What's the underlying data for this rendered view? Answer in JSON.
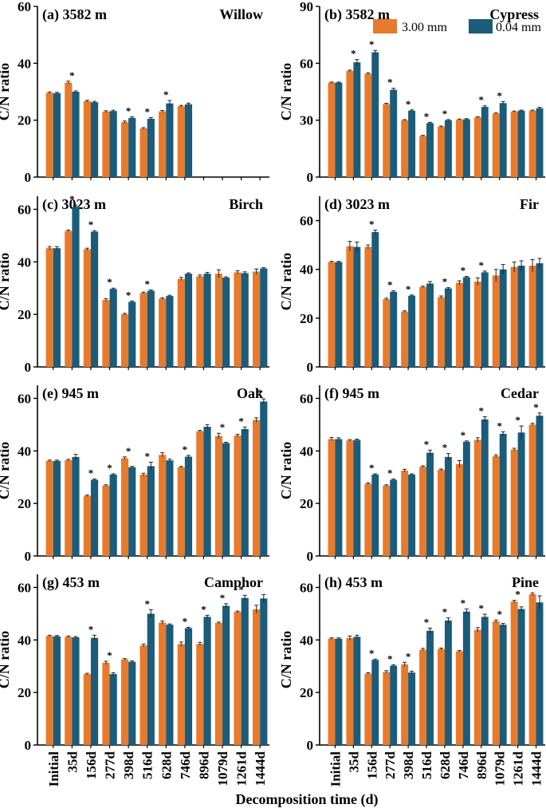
{
  "figure": {
    "xlabel": "Decomposition time (d)",
    "ylabel": "C/N ratio",
    "categories": [
      "Initial",
      "35d",
      "156d",
      "277d",
      "398d",
      "516d",
      "628d",
      "746d",
      "896d",
      "1079d",
      "1261d",
      "1444d"
    ],
    "colors": {
      "orange": "#E87A2C",
      "teal": "#1A5C7A"
    },
    "legend": [
      {
        "name": "3.00 mm",
        "color": "#E87A2C"
      },
      {
        "name": "0.04 mm",
        "color": "#1A5C7A"
      }
    ]
  },
  "chart_data": [
    {
      "type": "bar",
      "panel": "(a) 3582 m",
      "species": "Willow",
      "ylim": [
        0,
        60
      ],
      "yticks": [
        0,
        20,
        40,
        60
      ],
      "series": [
        {
          "name": "3.00 mm",
          "values": [
            29.6,
            33.2,
            26.7,
            23.0,
            19.3,
            17.1,
            23.1,
            24.9
          ]
        },
        {
          "name": "0.04 mm",
          "values": [
            29.5,
            30.0,
            26.3,
            23.2,
            20.8,
            20.5,
            25.9,
            25.6
          ]
        }
      ],
      "errors": [
        [
          0.3,
          0.5,
          0.3,
          0.3,
          0.4,
          0.3,
          0.3,
          0.3
        ],
        [
          0.3,
          0.3,
          0.3,
          0.3,
          0.4,
          0.4,
          1.0,
          0.4
        ]
      ],
      "sig": [
        1,
        4,
        5,
        6
      ]
    },
    {
      "type": "bar",
      "panel": "(b) 3582 m",
      "species": "Cypress",
      "ylim": [
        0,
        90
      ],
      "yticks": [
        0,
        30,
        60,
        90
      ],
      "series": [
        {
          "name": "3.00 mm",
          "values": [
            49.8,
            56.0,
            54.5,
            38.5,
            30.0,
            21.7,
            26.6,
            30.3,
            31.5,
            33.5,
            34.5,
            35.0
          ]
        },
        {
          "name": "0.04 mm",
          "values": [
            49.8,
            60.5,
            65.8,
            46.0,
            35.0,
            28.5,
            30.0,
            30.5,
            37.0,
            39.0,
            35.0,
            36.3
          ]
        }
      ],
      "errors": [
        [
          0.3,
          0.4,
          0.4,
          0.4,
          0.3,
          0.3,
          0.3,
          0.3,
          0.3,
          0.3,
          0.3,
          0.3
        ],
        [
          0.3,
          1.5,
          1.0,
          0.8,
          0.4,
          0.4,
          0.3,
          0.3,
          0.6,
          0.8,
          0.3,
          0.5
        ]
      ],
      "sig": [
        1,
        2,
        3,
        4,
        5,
        6,
        8,
        9
      ]
    },
    {
      "type": "bar",
      "panel": "(c) 3023 m",
      "species": "Birch",
      "ylim": [
        0,
        65
      ],
      "yticks": [
        0,
        20,
        40,
        60
      ],
      "series": [
        {
          "name": "3.00 mm",
          "values": [
            45.2,
            51.8,
            44.8,
            25.5,
            20.1,
            28.2,
            26.0,
            33.5,
            34.5,
            35.5,
            36.0,
            36.3
          ]
        },
        {
          "name": "0.04 mm",
          "values": [
            45.2,
            61.0,
            51.5,
            29.7,
            24.8,
            29.0,
            27.0,
            35.5,
            35.5,
            34.0,
            35.7,
            37.5
          ]
        }
      ],
      "errors": [
        [
          0.6,
          0.3,
          0.4,
          0.5,
          0.3,
          0.3,
          0.3,
          0.6,
          0.5,
          1.5,
          0.6,
          1.0
        ],
        [
          0.6,
          0.6,
          0.4,
          0.3,
          0.3,
          0.3,
          0.3,
          0.3,
          0.5,
          0.3,
          0.5,
          0.3
        ]
      ],
      "sig": [
        1,
        2,
        3,
        4,
        5
      ]
    },
    {
      "type": "bar",
      "panel": "(d) 3023 m",
      "species": "Fir",
      "ylim": [
        0,
        70
      ],
      "yticks": [
        0,
        20,
        40,
        60
      ],
      "series": [
        {
          "name": "3.00 mm",
          "values": [
            43.0,
            49.5,
            49.2,
            27.8,
            22.7,
            32.8,
            28.6,
            34.5,
            35.0,
            37.5,
            41.0,
            41.5
          ]
        },
        {
          "name": "0.04 mm",
          "values": [
            43.0,
            49.2,
            55.3,
            30.8,
            29.2,
            34.2,
            32.2,
            36.8,
            38.8,
            40.0,
            41.5,
            42.5
          ]
        }
      ],
      "errors": [
        [
          0.3,
          2.0,
          0.8,
          0.4,
          0.3,
          0.3,
          0.5,
          0.8,
          1.5,
          2.5,
          2.0,
          2.5
        ],
        [
          0.3,
          2.0,
          0.8,
          0.4,
          0.3,
          0.8,
          0.3,
          0.3,
          0.5,
          2.0,
          2.0,
          2.0
        ]
      ],
      "sig": [
        2,
        3,
        4,
        6,
        7,
        8
      ]
    },
    {
      "type": "bar",
      "panel": "(e) 945 m",
      "species": "Oak",
      "ylim": [
        0,
        65
      ],
      "yticks": [
        0,
        20,
        40,
        60
      ],
      "series": [
        {
          "name": "3.00 mm",
          "values": [
            36.2,
            36.5,
            22.9,
            26.8,
            37.2,
            31.0,
            38.5,
            33.8,
            47.5,
            45.7,
            45.8,
            51.8
          ]
        },
        {
          "name": "0.04 mm",
          "values": [
            36.2,
            37.7,
            29.0,
            31.0,
            33.8,
            34.2,
            36.4,
            37.8,
            49.2,
            43.0,
            48.3,
            58.8
          ]
        }
      ],
      "errors": [
        [
          0.3,
          0.3,
          0.3,
          0.3,
          0.5,
          0.5,
          0.8,
          0.3,
          0.3,
          1.0,
          0.5,
          0.8
        ],
        [
          0.3,
          1.0,
          0.3,
          0.3,
          0.3,
          1.5,
          0.5,
          0.5,
          0.8,
          0.3,
          0.8,
          1.0
        ]
      ],
      "sig": [
        2,
        3,
        4,
        5,
        7,
        9,
        10,
        11
      ]
    },
    {
      "type": "bar",
      "panel": "(f) 945 m",
      "species": "Cedar",
      "ylim": [
        0,
        65
      ],
      "yticks": [
        0,
        20,
        40,
        60
      ],
      "series": [
        {
          "name": "3.00 mm",
          "values": [
            44.5,
            44.0,
            27.5,
            26.8,
            32.5,
            34.0,
            32.8,
            35.0,
            44.2,
            38.0,
            40.5,
            50.0
          ]
        },
        {
          "name": "0.04 mm",
          "values": [
            44.5,
            44.2,
            31.0,
            29.0,
            31.0,
            39.3,
            37.7,
            43.5,
            52.0,
            46.5,
            47.0,
            53.4
          ]
        }
      ],
      "errors": [
        [
          0.6,
          0.3,
          0.3,
          0.3,
          0.5,
          0.3,
          0.3,
          1.3,
          0.8,
          0.5,
          0.5,
          0.5
        ],
        [
          0.5,
          0.3,
          0.3,
          0.3,
          0.3,
          1.0,
          1.3,
          0.3,
          1.0,
          0.8,
          2.5,
          1.0
        ]
      ],
      "sig": [
        2,
        3,
        5,
        6,
        7,
        8,
        9,
        10,
        11
      ]
    },
    {
      "type": "bar",
      "panel": "(g) 453 m",
      "species": "Camphor",
      "ylim": [
        0,
        65
      ],
      "yticks": [
        0,
        20,
        40,
        60
      ],
      "series": [
        {
          "name": "3.00 mm",
          "values": [
            41.5,
            41.2,
            27.0,
            31.3,
            32.6,
            37.9,
            46.6,
            38.4,
            38.5,
            46.5,
            50.7,
            51.7
          ]
        },
        {
          "name": "0.04 mm",
          "values": [
            41.4,
            41.0,
            40.8,
            27.0,
            31.7,
            50.0,
            45.8,
            44.5,
            48.8,
            53.0,
            56.0,
            55.8
          ]
        }
      ],
      "errors": [
        [
          0.3,
          0.3,
          0.3,
          0.6,
          0.3,
          0.5,
          0.6,
          0.8,
          0.6,
          0.3,
          0.3,
          1.5
        ],
        [
          0.3,
          0.3,
          1.0,
          0.5,
          0.3,
          1.5,
          0.3,
          0.3,
          0.6,
          0.8,
          1.0,
          1.5
        ]
      ],
      "sig": [
        2,
        3,
        5,
        7,
        8,
        9,
        10
      ]
    },
    {
      "type": "bar",
      "panel": "(h) 453 m",
      "species": "Pine",
      "ylim": [
        0,
        65
      ],
      "yticks": [
        0,
        20,
        40,
        60
      ],
      "series": [
        {
          "name": "3.00 mm",
          "values": [
            40.5,
            40.7,
            27.2,
            27.8,
            30.7,
            36.3,
            36.6,
            35.7,
            43.9,
            47.1,
            54.6,
            57.4
          ]
        },
        {
          "name": "0.04 mm",
          "values": [
            40.5,
            41.2,
            32.4,
            30.2,
            27.6,
            43.5,
            47.4,
            50.8,
            48.8,
            45.8,
            51.8,
            54.3
          ]
        }
      ],
      "errors": [
        [
          0.3,
          0.8,
          0.3,
          0.5,
          0.8,
          0.5,
          0.3,
          0.3,
          0.8,
          0.5,
          0.5,
          0.5
        ],
        [
          0.3,
          0.6,
          0.3,
          0.3,
          0.5,
          1.0,
          1.0,
          1.0,
          1.0,
          0.5,
          0.8,
          2.5
        ]
      ],
      "sig": [
        2,
        3,
        4,
        5,
        6,
        7,
        8,
        9,
        10
      ]
    }
  ]
}
